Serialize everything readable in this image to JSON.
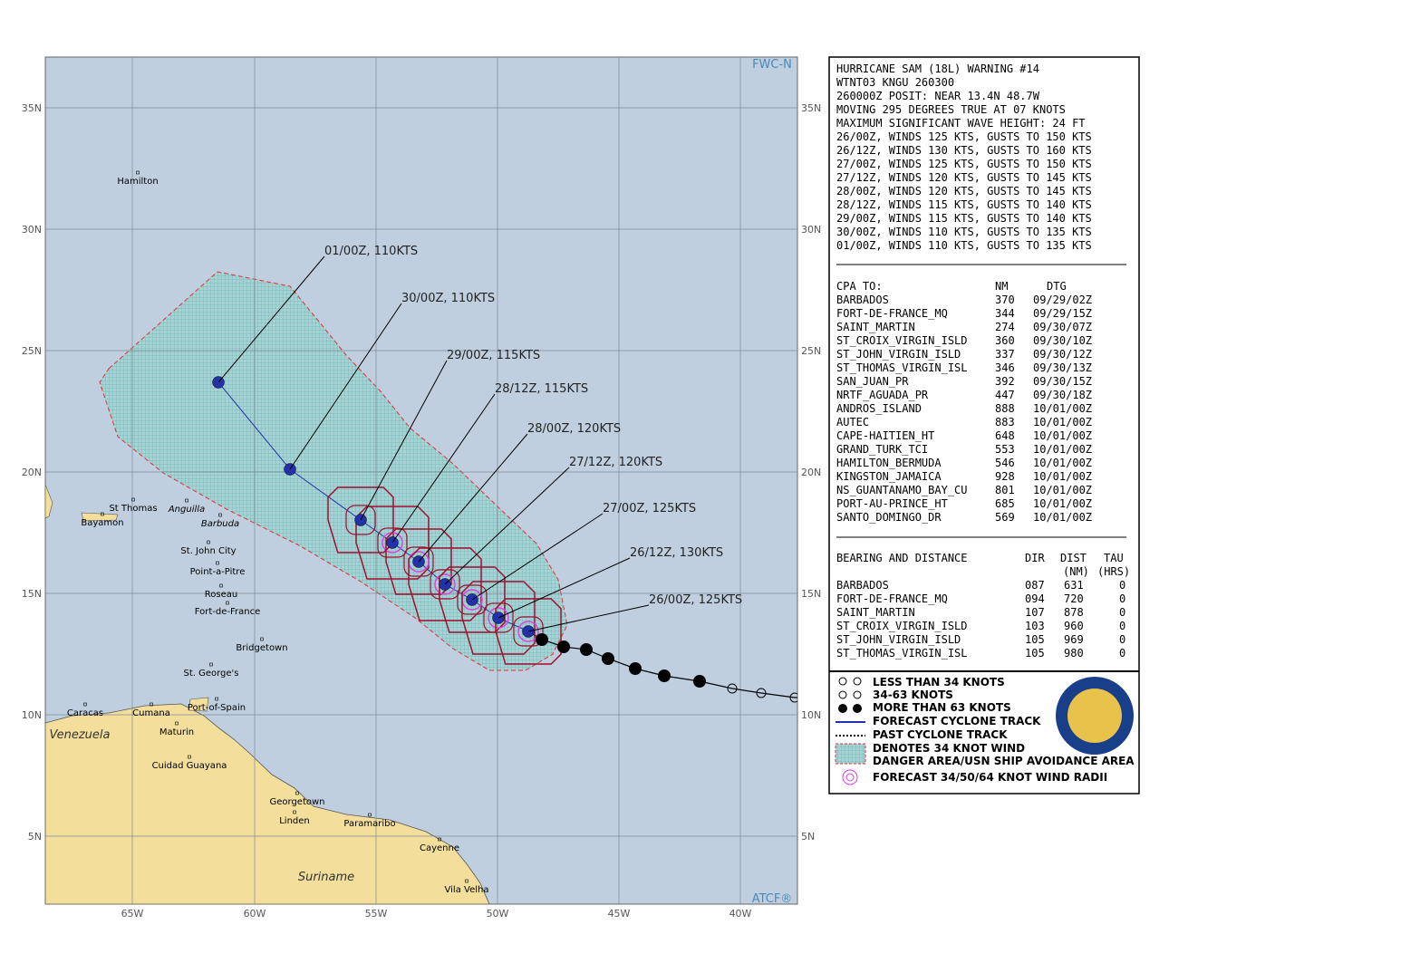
{
  "map": {
    "corner_labels": [
      "FWC-N",
      "ATCF®"
    ],
    "lon_labels": [
      "65W",
      "60W",
      "55W",
      "50W",
      "45W",
      "40W"
    ],
    "lat_labels": [
      "35N",
      "30N",
      "25N",
      "20N",
      "15N",
      "10N",
      "5N"
    ],
    "places": [
      "Hamilton",
      "St Thomas",
      "Anguilla",
      "Bayamon",
      "Barbuda",
      "St. John City",
      "Point-a-Pitre",
      "Roseau",
      "Fort-de-France",
      "Bridgetown",
      "St. George's",
      "Port-of-Spain",
      "Caracas",
      "Cumana",
      "Maturin",
      "Cuidad Guayana",
      "Georgetown",
      "Linden",
      "Paramaribo",
      "Cayenne",
      "Vila Velha"
    ],
    "regions": [
      "Venezuela",
      "Suriname"
    ],
    "forecast_labels": [
      "01/00Z, 110KTS",
      "30/00Z, 110KTS",
      "29/00Z, 115KTS",
      "28/12Z, 115KTS",
      "28/00Z, 120KTS",
      "27/12Z, 120KTS",
      "27/00Z, 125KTS",
      "26/12Z, 130KTS",
      "26/00Z, 125KTS"
    ]
  },
  "warning": {
    "header_lines": [
      "HURRICANE SAM (18L) WARNING #14",
      "WTNT03 KNGU 260300",
      "260000Z POSIT: NEAR 13.4N 48.7W",
      "MOVING 295 DEGREES TRUE AT 07 KNOTS",
      "MAXIMUM SIGNIFICANT WAVE HEIGHT: 24 FT",
      "26/00Z, WINDS 125 KTS, GUSTS TO 150 KTS",
      "26/12Z, WINDS 130 KTS, GUSTS TO 160 KTS",
      "27/00Z, WINDS 125 KTS, GUSTS TO 150 KTS",
      "27/12Z, WINDS 120 KTS, GUSTS TO 145 KTS",
      "28/00Z, WINDS 120 KTS, GUSTS TO 145 KTS",
      "28/12Z, WINDS 115 KTS, GUSTS TO 140 KTS",
      "29/00Z, WINDS 115 KTS, GUSTS TO 140 KTS",
      "30/00Z, WINDS 110 KTS, GUSTS TO 135 KTS",
      "01/00Z, WINDS 110 KTS, GUSTS TO 135 KTS"
    ],
    "cpa": {
      "headers": [
        "CPA TO:",
        "NM",
        "DTG"
      ],
      "rows": [
        [
          "BARBADOS",
          "370",
          "09/29/02Z"
        ],
        [
          "FORT-DE-FRANCE_MQ",
          "344",
          "09/29/15Z"
        ],
        [
          "SAINT_MARTIN",
          "274",
          "09/30/07Z"
        ],
        [
          "ST_CROIX_VIRGIN_ISLD",
          "360",
          "09/30/10Z"
        ],
        [
          "ST_JOHN_VIRGIN_ISLD",
          "337",
          "09/30/12Z"
        ],
        [
          "ST_THOMAS_VIRGIN_ISL",
          "346",
          "09/30/13Z"
        ],
        [
          "SAN_JUAN_PR",
          "392",
          "09/30/15Z"
        ],
        [
          "NRTF_AGUADA_PR",
          "447",
          "09/30/18Z"
        ],
        [
          "ANDROS_ISLAND",
          "888",
          "10/01/00Z"
        ],
        [
          "AUTEC",
          "883",
          "10/01/00Z"
        ],
        [
          "CAPE-HAITIEN_HT",
          "648",
          "10/01/00Z"
        ],
        [
          "GRAND_TURK_TCI",
          "553",
          "10/01/00Z"
        ],
        [
          "HAMILTON_BERMUDA",
          "546",
          "10/01/00Z"
        ],
        [
          "KINGSTON_JAMAICA",
          "928",
          "10/01/00Z"
        ],
        [
          "NS_GUANTANAMO_BAY_CU",
          "801",
          "10/01/00Z"
        ],
        [
          "PORT-AU-PRINCE_HT",
          "685",
          "10/01/00Z"
        ],
        [
          "SANTO_DOMINGO_DR",
          "569",
          "10/01/00Z"
        ]
      ]
    },
    "bearing": {
      "headers": [
        "BEARING AND DISTANCE",
        "DIR",
        "DIST",
        "TAU"
      ],
      "subheaders": [
        "(NM)",
        "(HRS)"
      ],
      "rows": [
        [
          "BARBADOS",
          "087",
          "631",
          "0"
        ],
        [
          "FORT-DE-FRANCE_MQ",
          "094",
          "720",
          "0"
        ],
        [
          "SAINT_MARTIN",
          "107",
          "878",
          "0"
        ],
        [
          "ST_CROIX_VIRGIN_ISLD",
          "103",
          "960",
          "0"
        ],
        [
          "ST_JOHN_VIRGIN_ISLD",
          "105",
          "969",
          "0"
        ],
        [
          "ST_THOMAS_VIRGIN_ISL",
          "105",
          "980",
          "0"
        ]
      ]
    }
  },
  "legend": [
    "LESS THAN 34 KNOTS",
    "34-63 KNOTS",
    "MORE THAN 63 KNOTS",
    "FORECAST CYCLONE TRACK",
    "PAST CYCLONE TRACK",
    "DENOTES 34 KNOT WIND",
    "DANGER AREA/USN SHIP AVOIDANCE AREA",
    "FORECAST 34/50/64 KNOT WIND RADII"
  ]
}
